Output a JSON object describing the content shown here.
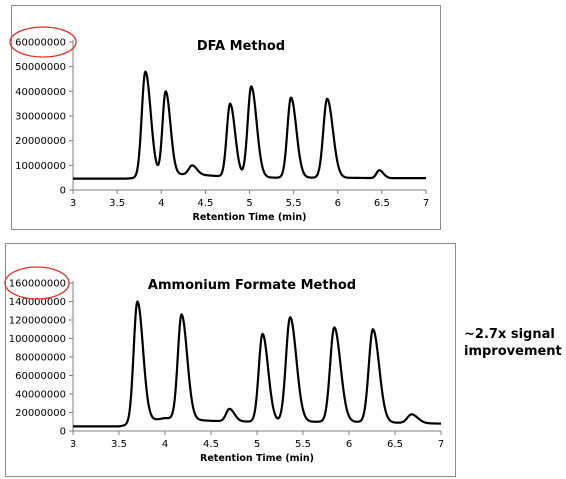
{
  "annotation": "~2.7x signal improvement",
  "chart_data": [
    {
      "type": "line",
      "title": "DFA Method",
      "xlabel": "Retention Time (min)",
      "ylabel": "",
      "xlim": [
        3,
        7
      ],
      "ylim": [
        0,
        60000000
      ],
      "x_ticks": [
        "3",
        "3.5",
        "4",
        "4.5",
        "5",
        "5.5",
        "6",
        "6.5",
        "7"
      ],
      "y_ticks": [
        "0",
        "10000000",
        "20000000",
        "30000000",
        "40000000",
        "50000000",
        "60000000"
      ],
      "highlighted_tick": "60000000",
      "grid": false,
      "series": [
        {
          "baseline": [
            [
              3.0,
              4600000
            ],
            [
              3.6,
              4600000
            ],
            [
              4.3,
              6500000
            ],
            [
              4.7,
              5500000
            ],
            [
              5.3,
              5000000
            ],
            [
              6.0,
              5000000
            ],
            [
              6.5,
              4800000
            ],
            [
              7.0,
              4800000
            ]
          ],
          "peaks": [
            {
              "x": 3.82,
              "y": 48000000
            },
            {
              "x": 4.05,
              "y": 40000000
            },
            {
              "x": 4.35,
              "y": 10000000
            },
            {
              "x": 4.78,
              "y": 35000000
            },
            {
              "x": 5.02,
              "y": 42000000
            },
            {
              "x": 5.47,
              "y": 37500000
            },
            {
              "x": 5.88,
              "y": 37000000
            },
            {
              "x": 6.47,
              "y": 8000000
            }
          ]
        }
      ]
    },
    {
      "type": "line",
      "title": "Ammonium Formate Method",
      "xlabel": "Retention Time (min)",
      "ylabel": "",
      "xlim": [
        3,
        7
      ],
      "ylim": [
        0,
        160000000
      ],
      "x_ticks": [
        "3",
        "3.5",
        "4",
        "4.5",
        "5",
        "5.5",
        "6",
        "6.5",
        "7"
      ],
      "y_ticks": [
        "0",
        "20000000",
        "40000000",
        "60000000",
        "80000000",
        "100000000",
        "120000000",
        "140000000",
        "160000000"
      ],
      "highlighted_tick": "160000000",
      "grid": false,
      "series": [
        {
          "baseline": [
            [
              3.0,
              5000000
            ],
            [
              3.5,
              5000000
            ],
            [
              4.0,
              14000000
            ],
            [
              4.5,
              11000000
            ],
            [
              5.0,
              10000000
            ],
            [
              6.0,
              10000000
            ],
            [
              7.0,
              8000000
            ]
          ],
          "peaks": [
            {
              "x": 3.7,
              "y": 140000000
            },
            {
              "x": 4.18,
              "y": 126000000
            },
            {
              "x": 4.7,
              "y": 24000000
            },
            {
              "x": 5.06,
              "y": 105000000
            },
            {
              "x": 5.36,
              "y": 123000000
            },
            {
              "x": 5.84,
              "y": 112000000
            },
            {
              "x": 6.26,
              "y": 110000000
            },
            {
              "x": 6.68,
              "y": 18000000
            }
          ]
        }
      ]
    }
  ]
}
